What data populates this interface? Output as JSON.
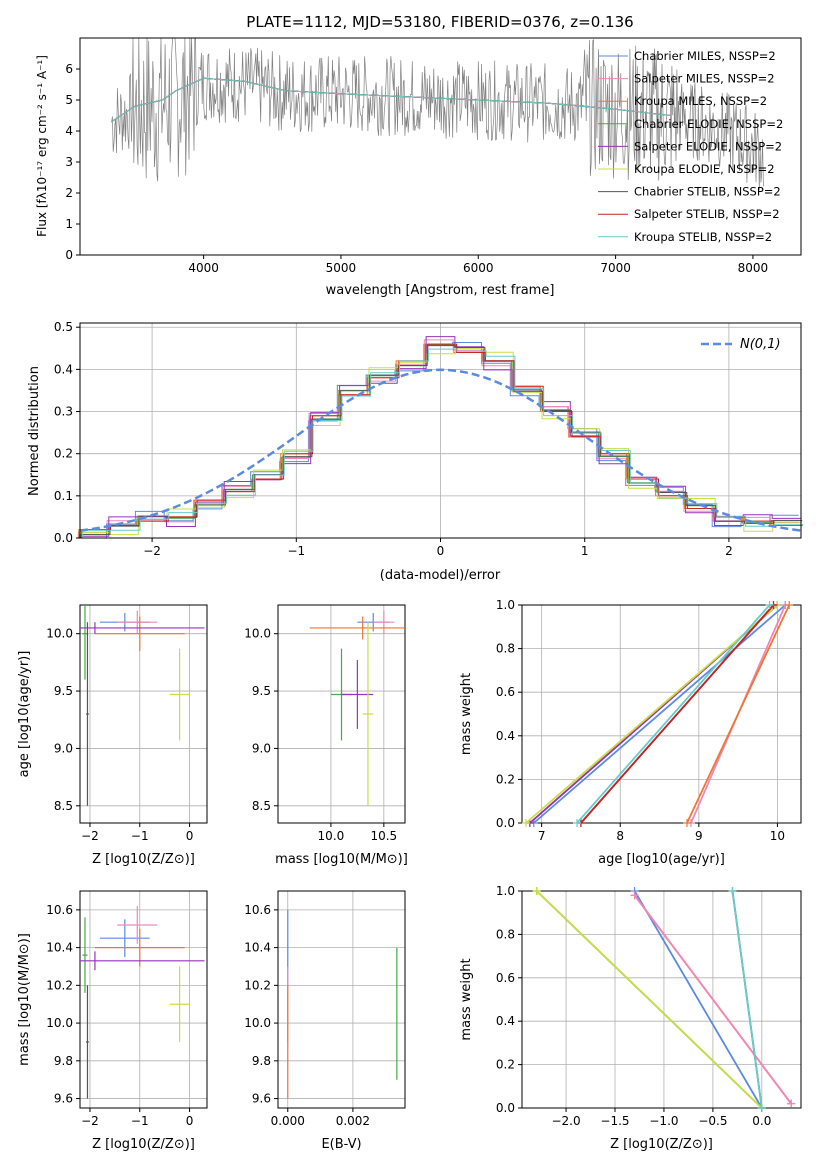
{
  "colors": {
    "chabrier_miles": "#5b8be0",
    "salpeter_miles": "#ee88bb",
    "kroupa_miles": "#ee7733",
    "chabrier_elodie": "#44aa44",
    "salpeter_elodie": "#9933bb",
    "kroupa_elodie": "#ccdd44",
    "chabrier_stelib": "#555555",
    "salpeter_stelib": "#cc2222",
    "kroupa_stelib": "#66cccc",
    "data_spectrum": "#808080",
    "normal": "#5b8be0",
    "grid": "#b0b0b0"
  },
  "chart_data": [
    {
      "id": "spectrum",
      "type": "line",
      "title": "PLATE=1112, MJD=53180, FIBERID=0376, z=0.136",
      "xlabel": "wavelength [Angstrom, rest frame]",
      "ylabel": "Flux [fλ10⁻¹⁷ erg cm⁻² s⁻¹ A⁻¹]",
      "xlim": [
        3100,
        8350
      ],
      "ylim": [
        0,
        7
      ],
      "xticks": [
        "4000",
        "5000",
        "6000",
        "7000",
        "8000"
      ],
      "yticks": [
        "0",
        "1",
        "2",
        "3",
        "4",
        "5",
        "6"
      ],
      "grid": false,
      "legend_position": "top-right",
      "series": [
        {
          "name": "Chabrier MILES, NSSP=2",
          "x": [
            3330,
            3500,
            3700,
            3800,
            4000,
            4300,
            4600,
            5000,
            5500,
            6000,
            6500,
            7000,
            7200
          ],
          "y": [
            4.3,
            4.8,
            5.0,
            5.3,
            5.7,
            5.6,
            5.3,
            5.2,
            5.1,
            5.0,
            4.9,
            4.7,
            4.6
          ]
        },
        {
          "name": "Salpeter MILES, NSSP=2",
          "x": [
            3330,
            3500,
            3700,
            3800,
            4000,
            4300,
            4600,
            5000,
            5500,
            6000,
            6500,
            7000,
            7200
          ],
          "y": [
            4.3,
            4.8,
            5.0,
            5.3,
            5.7,
            5.6,
            5.3,
            5.2,
            5.1,
            5.0,
            4.9,
            4.7,
            4.6
          ]
        },
        {
          "name": "Kroupa MILES, NSSP=2",
          "x": [
            3330,
            3500,
            3700,
            3800,
            4000,
            4300,
            4600,
            5000,
            5500,
            6000,
            6500,
            7000,
            7400
          ],
          "y": [
            4.3,
            4.8,
            5.0,
            5.3,
            5.7,
            5.6,
            5.3,
            5.2,
            5.1,
            5.0,
            4.9,
            4.7,
            4.5
          ]
        },
        {
          "name": "Chabrier ELODIE, NSSP=2",
          "x": [
            3330,
            3500,
            3700,
            3800,
            4000,
            4300,
            4600,
            5000,
            5500,
            6000,
            6500,
            6800
          ],
          "y": [
            4.3,
            4.8,
            5.0,
            5.3,
            5.7,
            5.6,
            5.3,
            5.2,
            5.1,
            5.0,
            4.9,
            4.8
          ]
        },
        {
          "name": "Salpeter ELODIE, NSSP=2",
          "x": [
            3330,
            3500,
            3700,
            3800,
            4000,
            4300,
            4600,
            5000,
            5500,
            6000,
            6500,
            6800
          ],
          "y": [
            4.3,
            4.8,
            5.0,
            5.3,
            5.7,
            5.6,
            5.3,
            5.2,
            5.1,
            5.0,
            4.9,
            4.8
          ]
        },
        {
          "name": "Kroupa ELODIE, NSSP=2",
          "x": [
            3330,
            3500,
            3700,
            3800,
            4000,
            4300,
            4600,
            5000,
            5500,
            6000,
            6500,
            6800
          ],
          "y": [
            4.3,
            4.8,
            5.0,
            5.3,
            5.7,
            5.6,
            5.3,
            5.2,
            5.1,
            5.0,
            4.9,
            4.8
          ]
        },
        {
          "name": "Chabrier STELIB, NSSP=2",
          "x": [
            3330,
            3500,
            3700,
            3800,
            4000,
            4300,
            4600,
            5000,
            5500,
            6000,
            6500,
            7000,
            7400
          ],
          "y": [
            4.3,
            4.8,
            5.0,
            5.3,
            5.7,
            5.6,
            5.3,
            5.2,
            5.1,
            5.0,
            4.9,
            4.7,
            4.5
          ]
        },
        {
          "name": "Salpeter STELIB, NSSP=2",
          "x": [
            3330,
            3500,
            3700,
            3800,
            4000,
            4300,
            4600,
            5000,
            5500,
            6000,
            6500,
            7000,
            7400
          ],
          "y": [
            4.3,
            4.8,
            5.0,
            5.3,
            5.7,
            5.6,
            5.3,
            5.2,
            5.1,
            5.0,
            4.9,
            4.7,
            4.5
          ]
        },
        {
          "name": "Kroupa STELIB, NSSP=2",
          "x": [
            3330,
            3500,
            3700,
            3800,
            4000,
            4300,
            4600,
            5000,
            5500,
            6000,
            6500,
            7000,
            7400
          ],
          "y": [
            4.3,
            4.8,
            5.0,
            5.3,
            5.7,
            5.6,
            5.3,
            5.2,
            5.1,
            5.0,
            4.9,
            4.7,
            4.5
          ]
        }
      ],
      "observed": {
        "x": [
          3330,
          3500,
          3700,
          3800,
          4000,
          4300,
          4600,
          5000,
          5500,
          6000,
          6500,
          7000,
          7400,
          7600,
          7800,
          8000,
          8080
        ],
        "y": [
          4.3,
          4.7,
          4.9,
          5.1,
          5.6,
          5.5,
          5.2,
          5.2,
          5.1,
          5.0,
          4.9,
          4.7,
          4.5,
          4.3,
          4.0,
          3.5,
          3.2
        ]
      }
    },
    {
      "id": "residuals",
      "type": "line",
      "xlabel": "(data-model)/error",
      "ylabel": "Normed distribution",
      "xlim": [
        -2.5,
        2.5
      ],
      "ylim": [
        0,
        0.51
      ],
      "xticks": [
        "−2",
        "−1",
        "0",
        "1",
        "2"
      ],
      "yticks": [
        "0.0",
        "0.1",
        "0.2",
        "0.3",
        "0.4",
        "0.5"
      ],
      "grid": true,
      "legend_position": "top-right",
      "legend_label": "N(0,1)",
      "bin_edges": [
        -2.5,
        -2.3,
        -2.1,
        -1.9,
        -1.7,
        -1.5,
        -1.3,
        -1.1,
        -0.9,
        -0.7,
        -0.5,
        -0.3,
        -0.1,
        0.1,
        0.3,
        0.5,
        0.7,
        0.9,
        1.1,
        1.3,
        1.5,
        1.7,
        1.9,
        2.1,
        2.3,
        2.5
      ],
      "histogram": [
        0.02,
        0.03,
        0.04,
        0.05,
        0.09,
        0.11,
        0.14,
        0.2,
        0.29,
        0.34,
        0.38,
        0.42,
        0.46,
        0.44,
        0.42,
        0.36,
        0.3,
        0.24,
        0.2,
        0.14,
        0.1,
        0.07,
        0.05,
        0.04,
        0.03
      ]
    },
    {
      "id": "age_vs_Z",
      "type": "scatter",
      "xlabel": "Z [log10(Z/Z⊙)]",
      "ylabel": "age  [log10(age/yr)]",
      "xlim": [
        -2.2,
        0.35
      ],
      "ylim": [
        8.35,
        10.25
      ],
      "xticks": [
        "−2",
        "−1",
        "0"
      ],
      "yticks": [
        "8.5",
        "9.0",
        "9.5",
        "10.0"
      ],
      "points": [
        {
          "x": -1.3,
          "y": 10.1,
          "xerr": 0.5,
          "yerr": 0.08
        },
        {
          "x": -1.05,
          "y": 10.1,
          "xerr": 0.4,
          "yerr": 0.1
        },
        {
          "x": -1.0,
          "y": 10.0,
          "xerr": 0.9,
          "yerr": 0.15
        },
        {
          "x": -2.1,
          "y": 10.0,
          "xerr": 0.05,
          "yerr": 0.4
        },
        {
          "x": -1.9,
          "y": 10.05,
          "xerr": 2.2,
          "yerr": 0.05
        },
        {
          "x": -0.2,
          "y": 9.47,
          "xerr": 0.2,
          "yerr": 0.4
        },
        {
          "x": -2.05,
          "y": 9.3,
          "xerr": 0.03,
          "yerr": 0.8
        }
      ]
    },
    {
      "id": "age_vs_mass",
      "type": "scatter",
      "xlabel": "mass [log10(M/M⊙)]",
      "ylabel": "",
      "xlim": [
        9.5,
        10.7
      ],
      "ylim": [
        8.35,
        10.25
      ],
      "xticks": [
        "10.0",
        "10.5"
      ],
      "yticks": [
        "8.5",
        "9.0",
        "9.5",
        "10.0"
      ],
      "points": [
        {
          "x": 10.4,
          "y": 10.1,
          "xerr": 0.15,
          "yerr": 0.08
        },
        {
          "x": 10.5,
          "y": 10.1,
          "xerr": 0.1,
          "yerr": 0.1
        },
        {
          "x": 10.3,
          "y": 10.05,
          "xerr": 0.5,
          "yerr": 0.1
        },
        {
          "x": 10.1,
          "y": 9.47,
          "xerr": 0.1,
          "yerr": 0.4
        },
        {
          "x": 10.25,
          "y": 9.47,
          "xerr": 0.15,
          "yerr": 0.3
        },
        {
          "x": 10.35,
          "y": 9.3,
          "xerr": 0.05,
          "yerr": 0.8
        }
      ]
    },
    {
      "id": "massweight_vs_age",
      "type": "line",
      "xlabel": "age  [log10(age/yr)]",
      "ylabel": "mass weight",
      "xlim": [
        6.75,
        10.3
      ],
      "ylim": [
        0,
        1
      ],
      "xticks": [
        "7",
        "8",
        "9",
        "10"
      ],
      "yticks": [
        "0.0",
        "0.2",
        "0.4",
        "0.6",
        "0.8",
        "1.0"
      ],
      "grid": true,
      "lines": [
        {
          "key": "chabrier_miles",
          "x": [
            6.9,
            10.1
          ],
          "y": [
            0,
            1
          ]
        },
        {
          "key": "salpeter_miles",
          "x": [
            8.9,
            10.1
          ],
          "y": [
            0,
            1
          ]
        },
        {
          "key": "kroupa_miles",
          "x": [
            8.85,
            10.15
          ],
          "y": [
            0,
            1
          ]
        },
        {
          "key": "chabrier_elodie",
          "x": [
            6.85,
            10.0
          ],
          "y": [
            0,
            1
          ]
        },
        {
          "key": "salpeter_elodie",
          "x": [
            6.85,
            10.0
          ],
          "y": [
            0,
            1
          ]
        },
        {
          "key": "kroupa_elodie",
          "x": [
            6.8,
            10.0
          ],
          "y": [
            0,
            1
          ]
        },
        {
          "key": "chabrier_stelib",
          "x": [
            7.5,
            9.95
          ],
          "y": [
            0,
            1
          ]
        },
        {
          "key": "salpeter_stelib",
          "x": [
            7.5,
            9.95
          ],
          "y": [
            0,
            1
          ]
        },
        {
          "key": "kroupa_stelib",
          "x": [
            7.45,
            9.9
          ],
          "y": [
            0,
            1
          ]
        }
      ]
    },
    {
      "id": "mass_vs_Z",
      "type": "scatter",
      "xlabel": "Z [log10(Z/Z⊙)]",
      "ylabel": "mass [log10(M/M⊙)]",
      "xlim": [
        -2.2,
        0.35
      ],
      "ylim": [
        9.55,
        10.7
      ],
      "xticks": [
        "−2",
        "−1",
        "0"
      ],
      "yticks": [
        "9.6",
        "9.8",
        "10.0",
        "10.2",
        "10.4",
        "10.6"
      ],
      "points": [
        {
          "x": -1.3,
          "y": 10.45,
          "xerr": 0.5,
          "yerr": 0.1
        },
        {
          "x": -1.05,
          "y": 10.52,
          "xerr": 0.4,
          "yerr": 0.1
        },
        {
          "x": -1.0,
          "y": 10.4,
          "xerr": 0.9,
          "yerr": 0.1
        },
        {
          "x": -2.1,
          "y": 10.36,
          "xerr": 0.05,
          "yerr": 0.2
        },
        {
          "x": -1.9,
          "y": 10.33,
          "xerr": 2.2,
          "yerr": 0.05
        },
        {
          "x": -0.2,
          "y": 10.1,
          "xerr": 0.2,
          "yerr": 0.2
        },
        {
          "x": -2.05,
          "y": 9.9,
          "xerr": 0.03,
          "yerr": 0.3
        }
      ]
    },
    {
      "id": "mass_vs_ebv",
      "type": "scatter",
      "xlabel": "E(B-V)",
      "ylabel": "",
      "xlim": [
        -0.0003,
        0.0036
      ],
      "ylim": [
        9.55,
        10.7
      ],
      "xticks": [
        "0.000",
        "0.002"
      ],
      "yticks": [
        "9.6",
        "9.8",
        "10.0",
        "10.2",
        "10.4",
        "10.6"
      ],
      "points": [
        {
          "x": 0.0,
          "y": 10.4,
          "xerr": 0,
          "yerr": 0.2
        },
        {
          "x": 0.0,
          "y": 10.1,
          "xerr": 0,
          "yerr": 0.2
        },
        {
          "x": 0.0,
          "y": 9.9,
          "xerr": 0,
          "yerr": 0.3
        },
        {
          "x": 0.00335,
          "y": 10.05,
          "xerr": 0,
          "yerr": 0.35
        }
      ]
    },
    {
      "id": "massweight_vs_Z",
      "type": "line",
      "xlabel": "Z [log10(Z/Z⊙)]",
      "ylabel": "mass weight",
      "xlim": [
        -2.45,
        0.4
      ],
      "ylim": [
        0,
        1
      ],
      "xticks": [
        "−2.0",
        "−1.5",
        "−1.0",
        "−0.5",
        "0.0",
        "0.5"
      ],
      "yticks": [
        "0.0",
        "0.2",
        "0.4",
        "0.6",
        "0.8",
        "1.0"
      ],
      "grid": true,
      "lines": [
        {
          "key": "chabrier_miles",
          "x": [
            -1.3,
            0.0
          ],
          "y": [
            1,
            0
          ]
        },
        {
          "key": "kroupa_miles",
          "x": [
            -1.3,
            0.3
          ],
          "y": [
            0.98,
            0.02
          ]
        },
        {
          "key": "salpeter_miles",
          "x": [
            -1.3,
            0.3
          ],
          "y": [
            0.98,
            0.02
          ]
        },
        {
          "key": "chabrier_elodie",
          "x": [
            -2.3,
            0.0
          ],
          "y": [
            1,
            0
          ]
        },
        {
          "key": "kroupa_elodie",
          "x": [
            -2.3,
            0.0
          ],
          "y": [
            1,
            0
          ]
        },
        {
          "key": "chabrier_stelib",
          "x": [
            -0.3,
            0.0
          ],
          "y": [
            1,
            0
          ]
        },
        {
          "key": "kroupa_stelib",
          "x": [
            -0.3,
            0.0
          ],
          "y": [
            1,
            0
          ]
        }
      ]
    }
  ]
}
